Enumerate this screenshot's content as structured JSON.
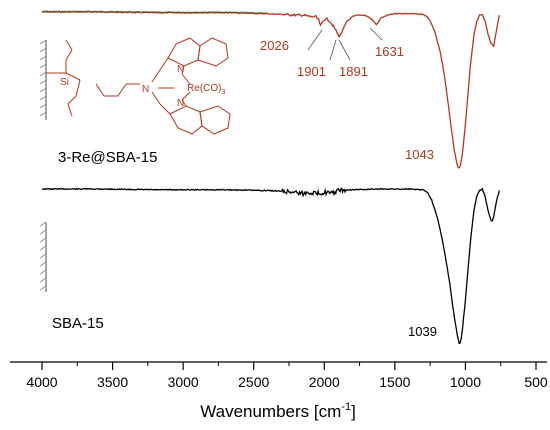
{
  "chart_data": {
    "type": "line",
    "xlabel": "Wavenumbers [cm",
    "xlabel_sup": "-1",
    "xlabel_close": "]",
    "xlim": [
      4200,
      500
    ],
    "xticks": [
      4000,
      3500,
      3000,
      2500,
      2000,
      1500,
      1000,
      500
    ],
    "y_axis_shown": false,
    "grid": false,
    "colors": {
      "re_sample": "#b5371e",
      "re_sample_start": "#4b5a26",
      "sba15": "#000000"
    },
    "series": [
      {
        "name": "3-Re@SBA-15",
        "x": [
          4000,
          3600,
          3200,
          2700,
          2450,
          2300,
          2200,
          2150,
          2100,
          2060,
          2040,
          2026,
          2010,
          1990,
          1960,
          1930,
          1910,
          1901,
          1891,
          1870,
          1840,
          1800,
          1760,
          1720,
          1690,
          1660,
          1640,
          1631,
          1620,
          1600,
          1550,
          1500,
          1400,
          1300,
          1260,
          1220,
          1180,
          1150,
          1120,
          1100,
          1080,
          1060,
          1050,
          1043,
          1035,
          1020,
          1000,
          980,
          960,
          940,
          920,
          900,
          880,
          860,
          840,
          820,
          800,
          780,
          760
        ],
        "y": [
          0,
          0,
          0.005,
          0.005,
          0.01,
          0.015,
          0.02,
          0.02,
          0.03,
          0.03,
          0.05,
          0.09,
          0.06,
          0.04,
          0.06,
          0.1,
          0.13,
          0.15,
          0.155,
          0.12,
          0.06,
          0.03,
          0.02,
          0.02,
          0.03,
          0.05,
          0.07,
          0.08,
          0.07,
          0.04,
          0.02,
          0.01,
          0.01,
          0.015,
          0.04,
          0.12,
          0.25,
          0.4,
          0.6,
          0.75,
          0.88,
          0.97,
          1.0,
          1.0,
          0.98,
          0.9,
          0.72,
          0.5,
          0.3,
          0.15,
          0.06,
          0.02,
          0.015,
          0.06,
          0.14,
          0.2,
          0.22,
          0.12,
          0.02
        ]
      },
      {
        "name": "SBA-15",
        "x": [
          4000,
          3600,
          3200,
          2700,
          2400,
          2200,
          2150,
          2100,
          2050,
          2000,
          1950,
          1900,
          1800,
          1600,
          1400,
          1300,
          1270,
          1240,
          1200,
          1170,
          1140,
          1110,
          1090,
          1070,
          1060,
          1050,
          1045,
          1039,
          1030,
          1020,
          1000,
          980,
          960,
          940,
          920,
          900,
          880,
          860,
          840,
          820,
          810,
          800,
          780,
          760
        ],
        "y": [
          0,
          0,
          0.005,
          0.005,
          0.01,
          0.02,
          0.03,
          0.02,
          0.03,
          0.02,
          0.03,
          0.01,
          0.005,
          0.0,
          0.0,
          0.005,
          0.02,
          0.07,
          0.18,
          0.3,
          0.45,
          0.62,
          0.76,
          0.88,
          0.94,
          0.98,
          1.0,
          1.0,
          0.97,
          0.9,
          0.72,
          0.5,
          0.3,
          0.14,
          0.05,
          0.01,
          0.0,
          0.05,
          0.14,
          0.2,
          0.21,
          0.18,
          0.08,
          0.01
        ]
      }
    ],
    "annotations": [
      {
        "series": "3-Re@SBA-15",
        "x": 2026,
        "text": "2026"
      },
      {
        "series": "3-Re@SBA-15",
        "x": 1901,
        "text": "1901"
      },
      {
        "series": "3-Re@SBA-15",
        "x": 1891,
        "text": "1891"
      },
      {
        "series": "3-Re@SBA-15",
        "x": 1631,
        "text": "1631"
      },
      {
        "series": "3-Re@SBA-15",
        "x": 1043,
        "text": "1043"
      },
      {
        "series": "SBA-15",
        "x": 1039,
        "text": "1039"
      }
    ],
    "sample_labels": {
      "top": "3-Re@SBA-15",
      "bottom": "SBA-15"
    },
    "structure_labels": {
      "si": "Si",
      "n_amine": "N",
      "n_quinoline_top": "N",
      "n_quinoline_bottom": "N",
      "rhenium": "Re(CO)",
      "rhenium_sub": "3"
    }
  }
}
